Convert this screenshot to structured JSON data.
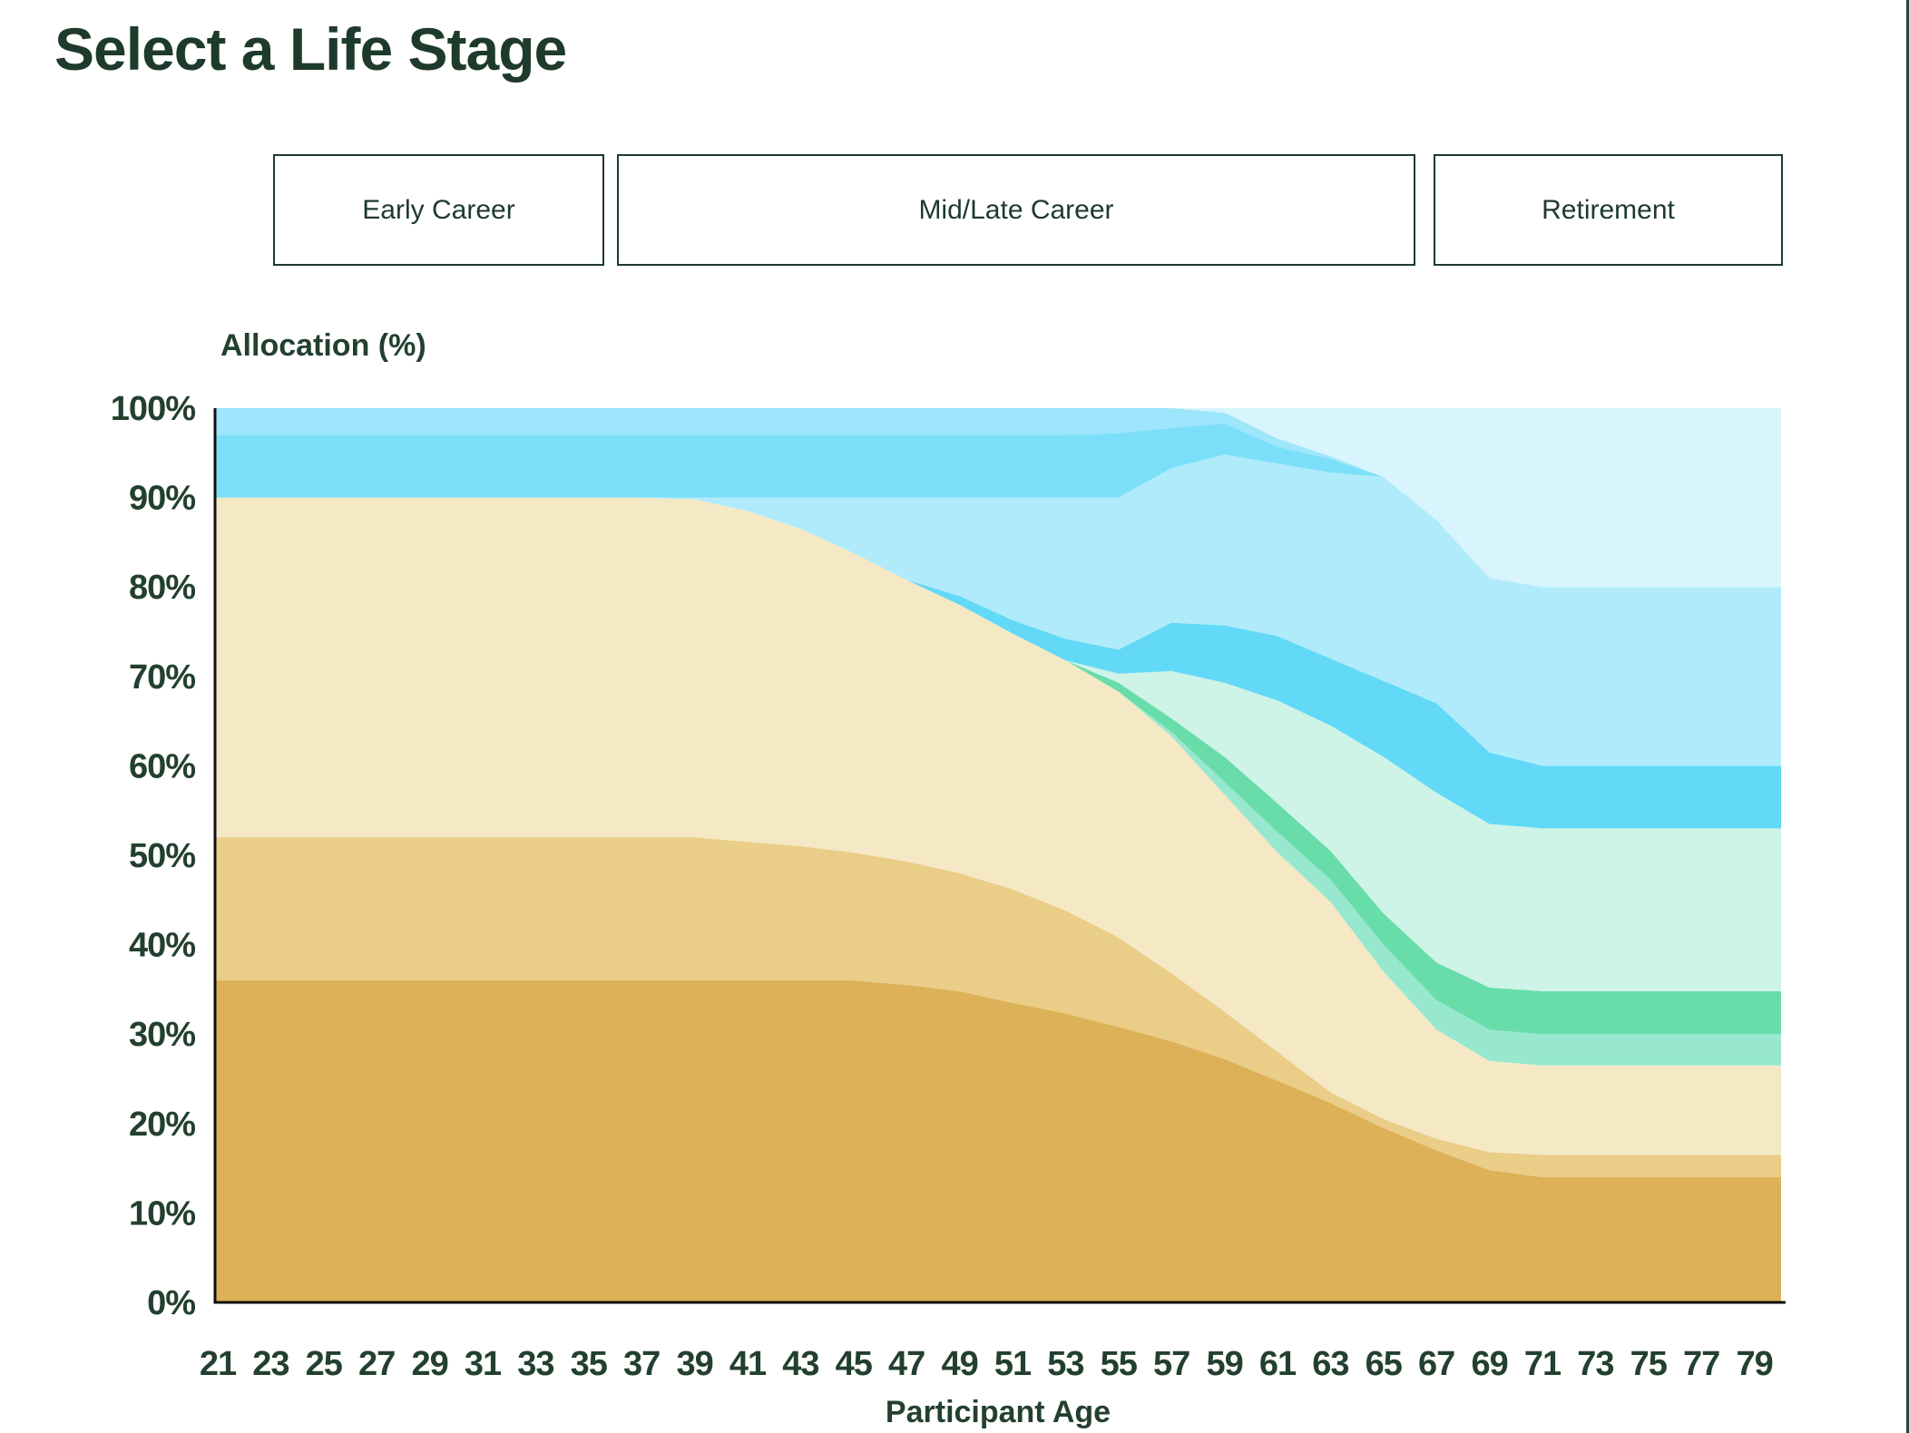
{
  "page": {
    "title": "Select a Life Stage",
    "accent_color": "#1e3a2b",
    "background_color": "#ffffff"
  },
  "life_stage_buttons": [
    {
      "label": "Early Career"
    },
    {
      "label": "Mid/Late Career"
    },
    {
      "label": "Retirement"
    }
  ],
  "chart_data": {
    "type": "area",
    "stacked": true,
    "ylabel": "Allocation (%)",
    "xlabel": "Participant Age",
    "ylim": [
      0,
      100
    ],
    "grid": false,
    "legend": "none",
    "x": [
      21,
      23,
      25,
      27,
      29,
      31,
      33,
      35,
      37,
      39,
      41,
      43,
      45,
      47,
      49,
      51,
      53,
      55,
      57,
      59,
      61,
      63,
      65,
      67,
      69,
      71,
      73,
      75,
      77,
      79
    ],
    "x_tick_labels": [
      "21",
      "23",
      "25",
      "27",
      "29",
      "31",
      "33",
      "35",
      "37",
      "39",
      "41",
      "43",
      "45",
      "47",
      "49",
      "51",
      "53",
      "55",
      "57",
      "59",
      "61",
      "63",
      "65",
      "67",
      "69",
      "71",
      "73",
      "75",
      "77",
      "79"
    ],
    "y_tick_labels": [
      "0%",
      "10%",
      "20%",
      "30%",
      "40%",
      "50%",
      "60%",
      "70%",
      "80%",
      "90%",
      "100%"
    ],
    "series": [
      {
        "name": "dark-gold",
        "color": "#ddb157",
        "values": [
          36,
          36,
          36,
          36,
          36,
          36,
          36,
          36,
          36,
          36,
          36,
          36,
          36,
          35.5,
          34.8,
          33.5,
          32.3,
          30.8,
          29.2,
          27.2,
          24.8,
          22.3,
          19.5,
          17,
          14.8,
          14,
          14,
          14,
          14,
          14
        ]
      },
      {
        "name": "medium-gold",
        "color": "#eacd86",
        "values": [
          16,
          16,
          16,
          16,
          16,
          16,
          16,
          16,
          16,
          16,
          15.5,
          15,
          14.3,
          13.8,
          13.2,
          12.7,
          11.5,
          10,
          7.6,
          5.3,
          3.2,
          1.2,
          1,
          1.3,
          2,
          2.5,
          2.5,
          2.5,
          2.5,
          2.5
        ]
      },
      {
        "name": "cream",
        "color": "#f4e8c5",
        "values": [
          38,
          38,
          38,
          38,
          38,
          38,
          38,
          38,
          38,
          37.8,
          37,
          35.5,
          33.5,
          31.5,
          30,
          28.6,
          28,
          27.5,
          26.5,
          24.3,
          22.3,
          21.3,
          16.5,
          12.2,
          10.2,
          10,
          10,
          10,
          10,
          10
        ]
      },
      {
        "name": "seafoam-green",
        "color": "#97e8cf",
        "values": [
          0,
          0,
          0,
          0,
          0,
          0,
          0,
          0,
          0,
          0,
          0,
          0,
          0,
          0,
          0,
          0,
          0,
          0,
          0.5,
          1.4,
          2.3,
          2.5,
          3,
          3.3,
          3.5,
          3.5,
          3.5,
          3.5,
          3.5,
          3.5
        ]
      },
      {
        "name": "medium-green",
        "color": "#68dca9",
        "values": [
          0,
          0,
          0,
          0,
          0,
          0,
          0,
          0,
          0,
          0,
          0,
          0,
          0,
          0,
          0,
          0,
          0,
          1,
          1.5,
          2.8,
          3.2,
          3.2,
          3.5,
          4.2,
          4.7,
          4.8,
          4.8,
          4.8,
          4.8,
          4.8
        ]
      },
      {
        "name": "pale-mint",
        "color": "#cef3e7",
        "values": [
          0,
          0,
          0,
          0,
          0,
          0,
          0,
          0,
          0,
          0,
          0,
          0,
          0,
          0,
          0,
          0,
          0,
          1,
          5.3,
          8.3,
          11.5,
          14,
          17.5,
          19,
          18.3,
          18.2,
          18.2,
          18.2,
          18.2,
          18.2
        ]
      },
      {
        "name": "deep-blue",
        "color": "#62d9f7",
        "values": [
          0,
          0,
          0,
          0,
          0,
          0,
          0,
          0,
          0,
          0,
          0,
          0,
          0,
          0,
          1,
          1.5,
          2.4,
          2.7,
          5.4,
          6.4,
          7.2,
          7.5,
          8.5,
          10,
          8,
          7,
          7,
          7,
          7,
          7
        ]
      },
      {
        "name": "light-blue",
        "color": "#b0ebfb",
        "values": [
          0,
          0,
          0,
          0,
          0,
          0,
          0,
          0,
          0,
          0.2,
          1.5,
          3.5,
          6.2,
          9.2,
          11,
          13.7,
          15.8,
          17,
          17.3,
          19.1,
          19.3,
          20.8,
          22.8,
          20.5,
          19.5,
          20,
          20,
          20,
          20,
          20
        ]
      },
      {
        "name": "medium-blue",
        "color": "#7cdff9",
        "values": [
          7,
          7,
          7,
          7,
          7,
          7,
          7,
          7,
          7,
          7,
          7,
          7,
          7,
          7,
          7,
          7,
          7,
          7.2,
          4.5,
          3.5,
          1.9,
          1.5,
          0,
          0,
          0,
          0,
          0,
          0,
          0,
          0
        ]
      },
      {
        "name": "light-medium-blue",
        "color": "#9de6fb",
        "values": [
          3,
          3,
          3,
          3,
          3,
          3,
          3,
          3,
          3,
          3,
          3,
          3,
          3,
          3,
          3,
          3,
          3,
          2.8,
          2.2,
          1.2,
          0.9,
          0.3,
          0,
          0,
          0,
          0,
          0,
          0,
          0,
          0
        ]
      },
      {
        "name": "palest-blue",
        "color": "#d8f4fc",
        "values": [
          0,
          0,
          0,
          0,
          0,
          0,
          0,
          0,
          0,
          0,
          0,
          0,
          0,
          0,
          0,
          0,
          0,
          0,
          0,
          0.5,
          3.4,
          5.4,
          7.7,
          12.5,
          19,
          20,
          20,
          20,
          20,
          20
        ]
      }
    ]
  }
}
